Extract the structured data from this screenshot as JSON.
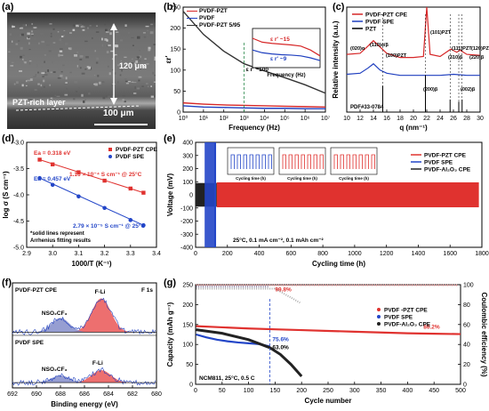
{
  "figure": {
    "panel_labels": [
      "(a)",
      "(b)",
      "(c)",
      "(d)",
      "(e)",
      "(f)",
      "(g)"
    ]
  },
  "panel_a": {
    "scale_120": "120 μm",
    "scale_100": "100 μm",
    "layer_label": "PZT-rich layer"
  },
  "panel_b": {
    "legend": [
      "PVDF-PZT",
      "PVDF",
      "PVDF-PZT 5/95"
    ],
    "annotation_main": "ε r′ ~100",
    "inset_ann1": "ε r′ ~15",
    "inset_ann2": "ε r′ ~9",
    "inset_xlabel": "Frequency (Hz)",
    "colors": {
      "pvdf_pzt": "#d62728",
      "pvdf": "#1f3fbf",
      "pvdf_pzt_595": "#333333"
    }
  },
  "panel_c": {
    "legend": [
      "PVDF-PZT CPE",
      "PVDF SPE",
      "PZT"
    ],
    "pdf_label": "PDF#33-0784",
    "peak_labels": [
      "(020)α",
      "(110)α/β",
      "(100)PZT",
      "(101)PZT",
      "(111)PZT",
      "(120)PZT",
      "(310)β",
      "(200)β",
      "(220)β",
      "(002)β"
    ]
  },
  "panel_d": {
    "ea1": "Ea = 0.318 eV",
    "ea2": "Ea = 0.457 eV",
    "sigma1": "1.16 × 10⁻⁴ S cm⁻¹ @ 25°C",
    "sigma2": "2.79 × 10⁻⁵ S cm⁻¹ @ 25°C",
    "note1": "*solid lines represent",
    "note2": "Arrhenius fitting results",
    "legend": [
      "PVDF-PZT CPE",
      "PVDF SPE"
    ]
  },
  "panel_e": {
    "legend": [
      "PVDF-PZT CPE",
      "PVDF SPE",
      "PVDF-Al₂O₃ CPE"
    ],
    "condition": "25°C, 0.1 mA cm⁻², 0.1 mAh cm⁻²",
    "inset_xlabel": "Cycling time (h)"
  },
  "panel_f": {
    "top_title": "PVDF-PZT CPE",
    "bottom_title": "PVDF SPE",
    "f1s": "F 1s",
    "peak_fli": "F-Li",
    "peak_nso": "NSO₂CF₃"
  },
  "panel_g": {
    "legend": [
      "PVDF -PZT CPE",
      "PVDF SPE",
      "PVDF-Al₂O₃ CPE"
    ],
    "ann_998": "99.8%",
    "ann_862": "86.2%",
    "ann_756": "75.6%",
    "ann_630": "63.0%",
    "condition": "NCM811, 25°C, 0.5 C"
  },
  "chart_data": [
    {
      "type": "line",
      "panel": "b",
      "xlabel": "Frequency (Hz)",
      "ylabel": "εr′",
      "x_log": true,
      "xlim": [
        1,
        10000000
      ],
      "ylim": [
        0,
        250
      ],
      "x_ticks": [
        "10⁰",
        "10¹",
        "10²",
        "10³",
        "10⁴",
        "10⁵",
        "10⁶",
        "10⁷"
      ],
      "y_ticks": [
        "0",
        "50",
        "100",
        "150",
        "200",
        "250"
      ],
      "series": [
        {
          "name": "PVDF-PZT",
          "x": [
            1,
            10,
            100,
            1000,
            10000,
            100000,
            1000000,
            10000000
          ],
          "y": [
            22,
            19,
            17,
            16,
            15,
            14,
            13,
            12
          ]
        },
        {
          "name": "PVDF",
          "x": [
            1,
            10,
            100,
            1000,
            10000,
            100000,
            1000000,
            10000000
          ],
          "y": [
            15,
            12,
            11,
            10,
            9,
            9,
            8,
            8
          ]
        },
        {
          "name": "PVDF-PZT 5/95",
          "x": [
            1,
            10,
            100,
            1000,
            10000,
            100000,
            1000000,
            10000000
          ],
          "y": [
            240,
            185,
            145,
            115,
            98,
            82,
            65,
            45
          ]
        }
      ]
    },
    {
      "type": "line",
      "panel": "c",
      "xlabel": "q (nm⁻¹)",
      "ylabel": "Relative intensity (a.u.)",
      "xlim": [
        10,
        30
      ],
      "x_ticks": [
        "10",
        "12",
        "14",
        "16",
        "18",
        "20",
        "22",
        "24",
        "26",
        "28",
        "30"
      ],
      "series": [
        {
          "name": "PVDF-PZT CPE",
          "x": [
            10,
            12,
            13.2,
            14,
            15,
            16,
            18,
            20,
            21.5,
            22,
            22.5,
            24,
            25.6,
            26.5,
            27,
            28,
            30
          ],
          "y": [
            0.55,
            0.56,
            0.63,
            0.68,
            0.62,
            0.56,
            0.52,
            0.52,
            0.53,
            1.0,
            0.55,
            0.53,
            0.6,
            0.57,
            0.59,
            0.55,
            0.54
          ]
        },
        {
          "name": "PVDF SPE",
          "x": [
            10,
            12,
            13.2,
            14,
            15,
            16,
            18,
            20,
            22,
            24,
            26,
            28,
            30
          ],
          "y": [
            0.36,
            0.37,
            0.42,
            0.46,
            0.4,
            0.37,
            0.35,
            0.35,
            0.35,
            0.35,
            0.36,
            0.35,
            0.35
          ]
        },
        {
          "name": "PZT",
          "x": [
            15.4,
            21.8,
            25.5,
            26.8,
            27.3
          ],
          "y": [
            0.25,
            0.35,
            0.12,
            0.1,
            0.12
          ]
        }
      ]
    },
    {
      "type": "scatter",
      "panel": "d",
      "xlabel": "1000/T (K⁻¹)",
      "ylabel": "log σ (S cm⁻¹)",
      "xlim": [
        2.9,
        3.4
      ],
      "ylim": [
        -5.0,
        -3.0
      ],
      "x_ticks": [
        "2.9",
        "3.0",
        "3.1",
        "3.2",
        "3.3",
        "3.4"
      ],
      "y_ticks": [
        "-3.0",
        "-3.5",
        "-4.0",
        "-4.5",
        "-5.0"
      ],
      "series": [
        {
          "name": "PVDF-PZT CPE",
          "x": [
            2.95,
            3.0,
            3.1,
            3.2,
            3.3,
            3.35
          ],
          "y": [
            -3.33,
            -3.42,
            -3.57,
            -3.73,
            -3.88,
            -3.96
          ]
        },
        {
          "name": "PVDF SPE",
          "x": [
            2.95,
            3.0,
            3.1,
            3.2,
            3.3,
            3.35
          ],
          "y": [
            -3.68,
            -3.81,
            -4.03,
            -4.25,
            -4.48,
            -4.58
          ]
        }
      ]
    },
    {
      "type": "line",
      "panel": "e",
      "xlabel": "Cycling time (h)",
      "ylabel": "Voltage (mV)",
      "xlim": [
        0,
        1900
      ],
      "ylim": [
        -400,
        400
      ],
      "x_ticks": [
        "0",
        "200",
        "400",
        "600",
        "800",
        "1000",
        "1200",
        "1400",
        "1600",
        "1800"
      ],
      "y_ticks": [
        "-400",
        "-300",
        "-200",
        "-100",
        "0",
        "100",
        "200",
        "300",
        "400"
      ],
      "series": [
        {
          "name": "PVDF-PZT CPE",
          "x_range": [
            0,
            1880
          ],
          "amplitude": [
            70,
            95
          ]
        },
        {
          "name": "PVDF SPE",
          "x_range": [
            0,
            130
          ],
          "amplitude": [
            60,
            400
          ]
        },
        {
          "name": "PVDF-Al₂O₃ CPE",
          "x_range": [
            0,
            140
          ],
          "amplitude": [
            60,
            90
          ]
        }
      ]
    },
    {
      "type": "line",
      "panel": "f",
      "xlabel": "Binding energy (eV)",
      "xlim": [
        692,
        680
      ],
      "x_ticks": [
        "692",
        "690",
        "688",
        "686",
        "684",
        "682",
        "680"
      ],
      "series": [
        {
          "name": "PVDF-PZT CPE F-Li",
          "peak_x": 684.6,
          "height": 1.0
        },
        {
          "name": "PVDF-PZT CPE NSO₂CF₃",
          "peak_x": 688.0,
          "height": 0.45
        },
        {
          "name": "PVDF SPE F-Li",
          "peak_x": 684.9,
          "height": 0.35
        },
        {
          "name": "PVDF SPE NSO₂CF₃",
          "peak_x": 688.0,
          "height": 0.2
        }
      ]
    },
    {
      "type": "scatter",
      "panel": "g",
      "xlabel": "Cycle number",
      "ylabel": "Capacity (mAh g⁻¹)",
      "ylabel_right": "Coulombic efficiency (%)",
      "xlim": [
        0,
        500
      ],
      "ylim": [
        0,
        250
      ],
      "ylim_right": [
        0,
        100
      ],
      "x_ticks": [
        "0",
        "50",
        "100",
        "150",
        "200",
        "250",
        "300",
        "350",
        "400",
        "450",
        "500"
      ],
      "y_ticks": [
        "0",
        "50",
        "100",
        "150",
        "200",
        "250"
      ],
      "y_ticks_right": [
        "0",
        "20",
        "40",
        "60",
        "80",
        "100"
      ],
      "series": [
        {
          "name": "PVDF -PZT CPE",
          "x": [
            1,
            50,
            100,
            150,
            200,
            250,
            300,
            350,
            400,
            450,
            500
          ],
          "y": [
            146,
            143,
            140,
            138,
            136,
            134,
            132,
            130,
            128,
            127,
            126
          ]
        },
        {
          "name": "PVDF SPE",
          "x": [
            1,
            20,
            40,
            60,
            80,
            100,
            120,
            140
          ],
          "y": [
            125,
            118,
            112,
            108,
            105,
            103,
            101,
            95
          ]
        },
        {
          "name": "PVDF-Al₂O₃ CPE",
          "x": [
            1,
            50,
            100,
            120,
            140,
            160,
            180,
            200
          ],
          "y": [
            137,
            128,
            112,
            102,
            92,
            75,
            50,
            20
          ]
        }
      ]
    }
  ]
}
